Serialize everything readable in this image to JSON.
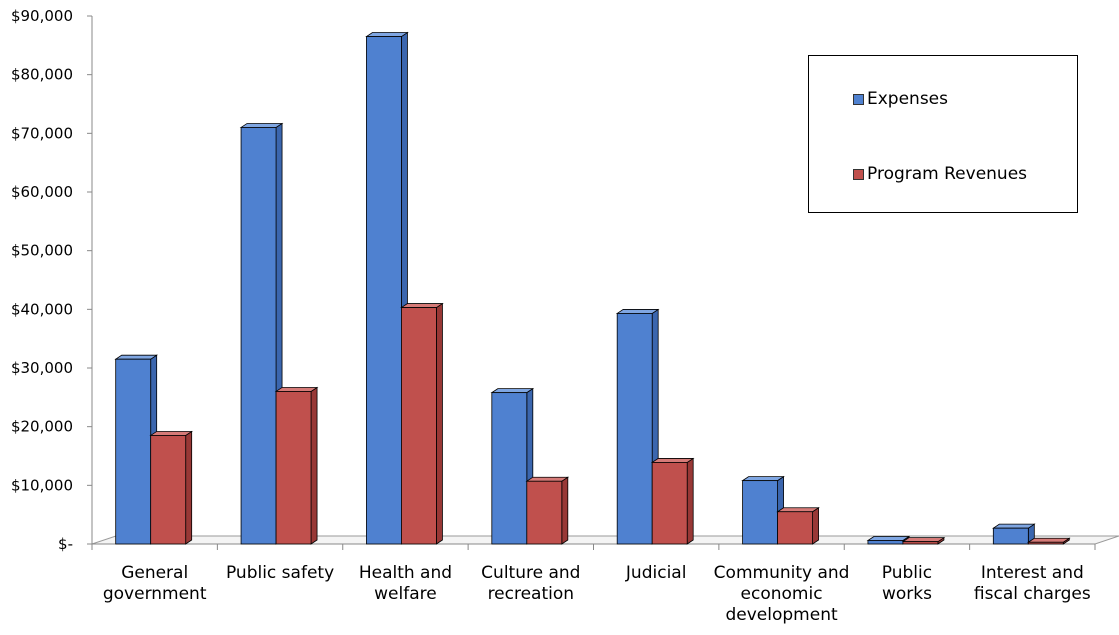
{
  "chart_data": {
    "type": "bar",
    "title": "",
    "xlabel": "",
    "ylabel": "",
    "ylim": [
      0,
      90000
    ],
    "y_ticks": [
      0,
      10000,
      20000,
      30000,
      40000,
      50000,
      60000,
      70000,
      80000,
      90000
    ],
    "y_tick_labels": [
      "$-",
      "$10,000",
      "$20,000",
      "$30,000",
      "$40,000",
      "$50,000",
      "$60,000",
      "$70,000",
      "$80,000",
      "$90,000"
    ],
    "categories": [
      [
        "General",
        "government"
      ],
      [
        "Public safety"
      ],
      [
        "Health and",
        "welfare"
      ],
      [
        "Culture and",
        "recreation"
      ],
      [
        "Judicial"
      ],
      [
        "Community and",
        "economic",
        "development"
      ],
      [
        "Public",
        "works"
      ],
      [
        "Interest and",
        "fiscal charges"
      ]
    ],
    "series": [
      {
        "name": "Expenses",
        "color": "#4F81D0",
        "side": "#3B66AE",
        "top": "#7FA6E2",
        "values": [
          31500,
          71000,
          86500,
          25800,
          39300,
          10800,
          600,
          2700
        ]
      },
      {
        "name": "Program Revenues",
        "color": "#C0504D",
        "side": "#983836",
        "top": "#D67B78",
        "values": [
          18500,
          26000,
          40300,
          10700,
          13900,
          5500,
          400,
          300
        ]
      }
    ],
    "legend_position": "top-right",
    "grid": false
  }
}
